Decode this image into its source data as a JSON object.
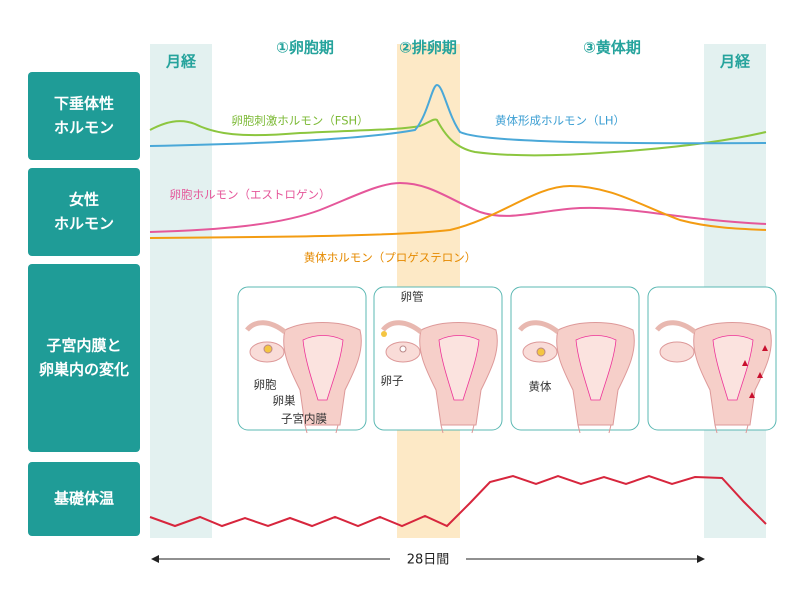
{
  "header": {
    "menses_start": "月経",
    "phases": [
      "①卵胞期",
      "②排卵期",
      "③黄体期"
    ],
    "menses_end": "月経"
  },
  "rows": [
    {
      "lines": [
        "下垂体性",
        "ホルモン"
      ]
    },
    {
      "lines": [
        "女性",
        "ホルモン"
      ]
    },
    {
      "lines": [
        "子宮内膜と",
        "卵巣内の変化"
      ]
    },
    {
      "lines": [
        "基礎体温"
      ]
    }
  ],
  "hormones": [
    "卵胞刺激ホルモン（FSH）",
    "黄体形成ホルモン（LH）",
    "卵胞ホルモン（エストロゲン）",
    "黄体ホルモン（プロゲステロン）"
  ],
  "panel_labels": [
    "卵胞",
    "卵巣",
    "子宮内膜",
    "卵管",
    "卵子",
    "黄体"
  ],
  "duration": "28日間"
}
